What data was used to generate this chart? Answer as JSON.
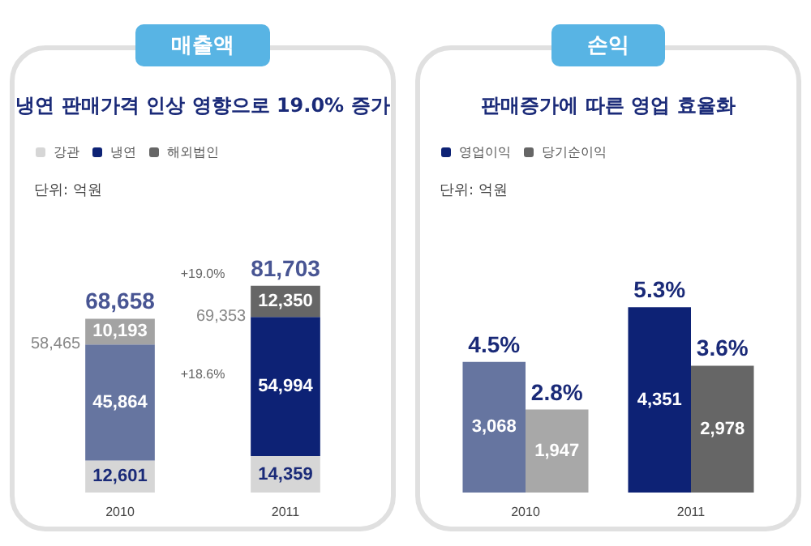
{
  "chart_data": [
    {
      "type": "bar",
      "title": "매출액",
      "subtitle": "냉연 판매가격 인상 영향으로 19.0% 증가",
      "categories": [
        "2010",
        "2011"
      ],
      "stacked": true,
      "tick_labels": "x",
      "legend": "top left",
      "series": [
        {
          "name": "강관",
          "color": "#d6d6d6",
          "colors": [
            "#d6d6d6",
            "#d6d6d6"
          ],
          "values": [
            12601,
            14359
          ],
          "value_labels": [
            "12,601",
            "14,359"
          ]
        },
        {
          "name": "냉연",
          "color": "#0d2275",
          "colors": [
            "#6675a0",
            "#0d2275"
          ],
          "values": [
            45864,
            54994
          ],
          "value_labels": [
            "45,864",
            "54,994"
          ]
        },
        {
          "name": "해외법인",
          "color": "#666666",
          "colors": [
            "#a3a3a3",
            "#666666"
          ],
          "values": [
            10193,
            12350
          ],
          "value_labels": [
            "10,193",
            "12,350"
          ]
        }
      ],
      "totals": [
        "68,658",
        "81,703"
      ],
      "annotations": [
        "단위: 억원",
        "+18.6%",
        "+19.0%",
        {
          "text": "58,465",
          "x": "2010",
          "y": 58465
        },
        {
          "text": "69,353",
          "x": "2011",
          "y": 69353
        }
      ]
    },
    {
      "type": "bar",
      "title": "손익",
      "subtitle": "판매증가에 따른 영업 효율화",
      "categories": [
        "2010",
        "2011"
      ],
      "tick_labels": "x",
      "legend": "top left",
      "series": [
        {
          "name": "영업이익",
          "color": "#0d2275",
          "colors": [
            "#6675a0",
            "#0d2275"
          ],
          "values": [
            3068,
            4351
          ],
          "value_labels": [
            "3,068",
            "4,351"
          ]
        },
        {
          "name": "당기순이익",
          "color": "#666666",
          "colors": [
            "#a8a8a8",
            "#666666"
          ],
          "values": [
            1947,
            2978
          ],
          "value_labels": [
            "1,947",
            "2,978"
          ]
        }
      ],
      "annotations": [
        "단위: 억원",
        {
          "text": "4.5%",
          "x": "2010",
          "y": 3068
        },
        {
          "text": "2.8%",
          "x": "2010",
          "y": 1947
        },
        {
          "text": "5.3%",
          "x": "2011",
          "y": 4351
        },
        {
          "text": "3.6%",
          "x": "2011",
          "y": 2978
        }
      ]
    }
  ]
}
